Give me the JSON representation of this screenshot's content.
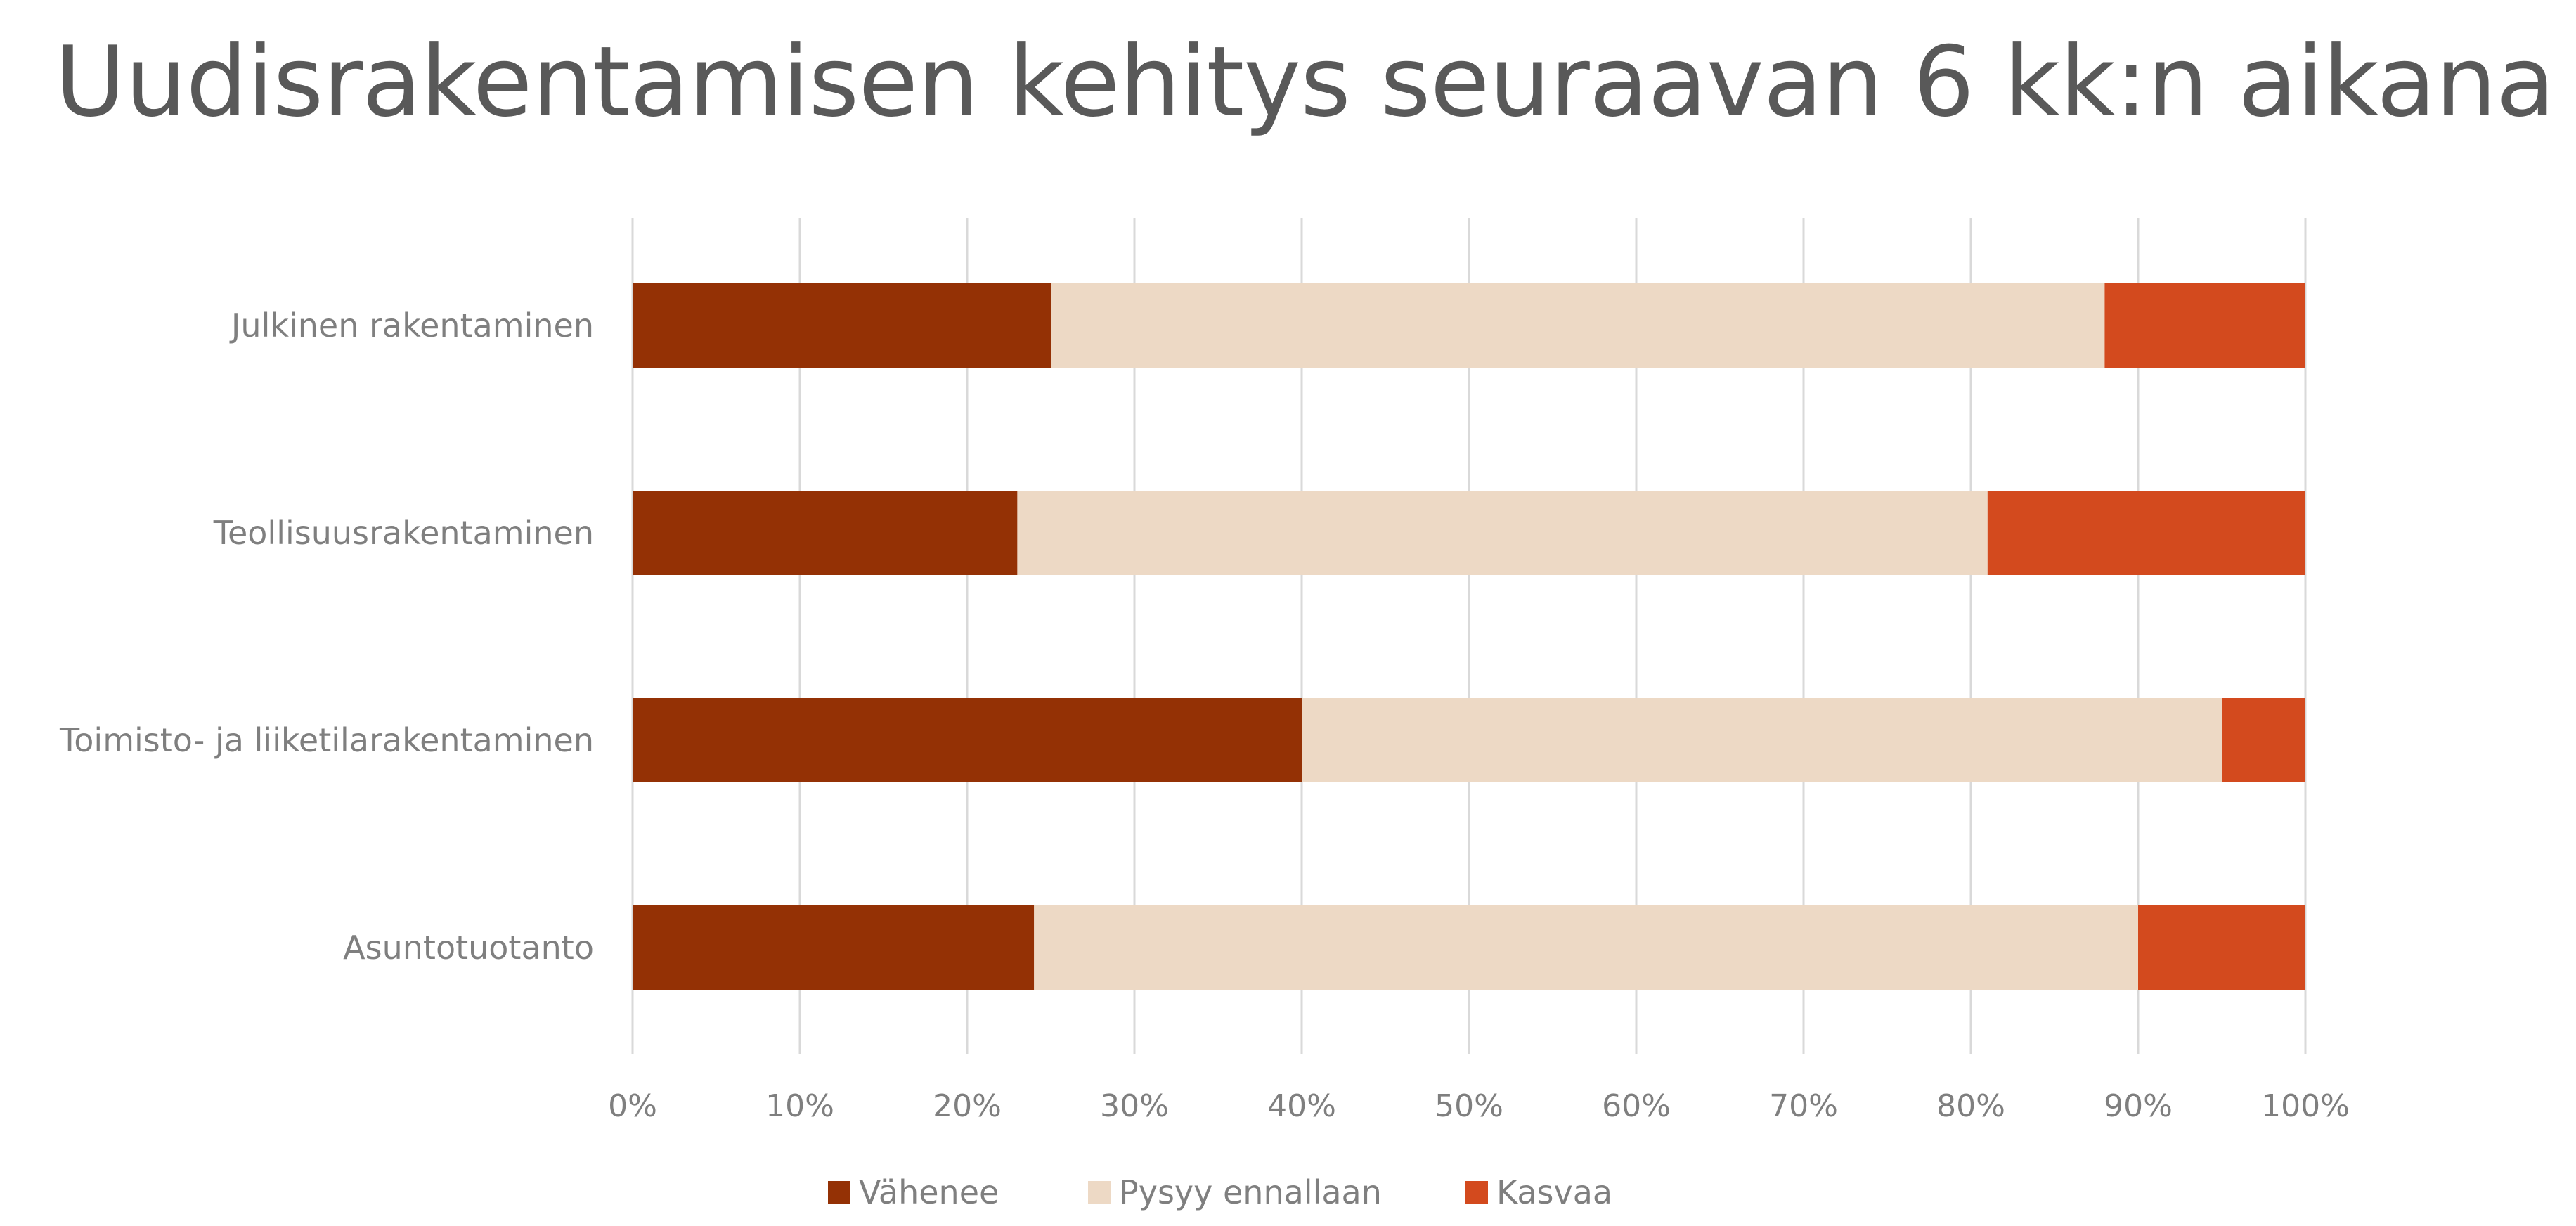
{
  "chart_data": {
    "type": "bar",
    "orientation": "horizontal",
    "stacked": "percent",
    "title": "Uudisrakentamisen kehitys seuraavan 6 kk:n aikana",
    "categories": [
      "Julkinen rakentaminen",
      "Teollisuusrakentaminen",
      "Toimisto- ja liiketilarakentaminen",
      "Asuntotuotanto"
    ],
    "series": [
      {
        "name": "Vähenee",
        "color": "#943105",
        "values": [
          25,
          23,
          40,
          24
        ]
      },
      {
        "name": "Pysyy ennallaan",
        "color": "#EDD9C5",
        "values": [
          63,
          58,
          55,
          66
        ]
      },
      {
        "name": "Kasvaa",
        "color": "#D34A1E",
        "values": [
          12,
          19,
          5,
          10
        ]
      }
    ],
    "x_ticks": [
      "0%",
      "10%",
      "20%",
      "30%",
      "40%",
      "50%",
      "60%",
      "70%",
      "80%",
      "90%",
      "100%"
    ],
    "xlim": [
      0,
      100
    ],
    "grid": true,
    "legend_position": "bottom"
  }
}
